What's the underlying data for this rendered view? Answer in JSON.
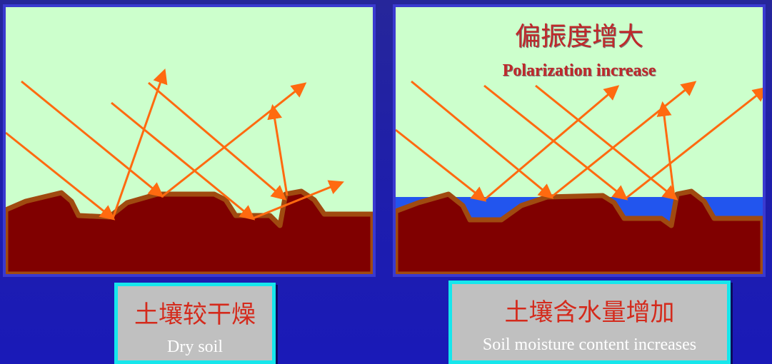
{
  "left_panel": {},
  "right_panel": {
    "title_cn": "偏振度增大",
    "title_en": "Polarization increase"
  },
  "left_caption": {
    "cn": "土壤较干燥",
    "en": "Dry soil"
  },
  "right_caption": {
    "cn": "土壤含水量增加",
    "en": "Soil moisture content increases"
  },
  "colors": {
    "sky": "#ccffcc",
    "soil": "#800000",
    "soil_edge": "#a04a10",
    "water": "#2255ee",
    "arrow": "#ff6a10",
    "title_red": "#c0282a",
    "caption_bg": "#c0c0c0",
    "caption_border": "#16e6ec"
  }
}
